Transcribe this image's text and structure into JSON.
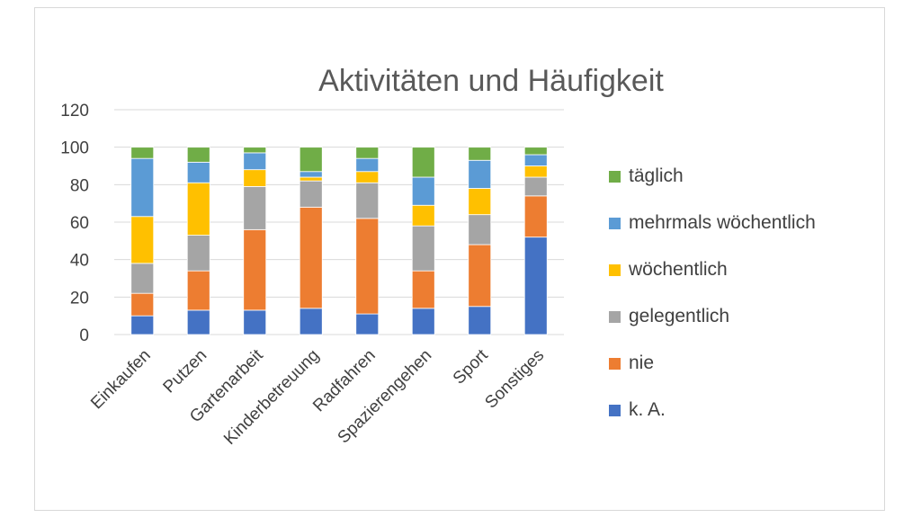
{
  "chart_data": {
    "type": "bar",
    "stacked": true,
    "title": "Aktivitäten und Häufigkeit",
    "xlabel": "",
    "ylabel": "",
    "ylim": [
      0,
      120
    ],
    "yticks": [
      0,
      20,
      40,
      60,
      80,
      100,
      120
    ],
    "grid": true,
    "legend_position": "right",
    "categories": [
      "Einkaufen",
      "Putzen",
      "Gartenarbeit",
      "Kinderbetreuung",
      "Radfahren",
      "Spazierengehen",
      "Sport",
      "Sonstiges"
    ],
    "series": [
      {
        "name": "k. A.",
        "color": "#4472C4",
        "values": [
          10,
          13,
          13,
          14,
          11,
          14,
          15,
          52
        ]
      },
      {
        "name": "nie",
        "color": "#ED7D31",
        "values": [
          12,
          21,
          43,
          54,
          51,
          20,
          33,
          22
        ]
      },
      {
        "name": "gelegentlich",
        "color": "#A5A5A5",
        "values": [
          16,
          19,
          23,
          14,
          19,
          24,
          16,
          10
        ]
      },
      {
        "name": "wöchentlich",
        "color": "#FFC000",
        "values": [
          25,
          28,
          9,
          2,
          6,
          11,
          14,
          6
        ]
      },
      {
        "name": "mehrmals wöchentlich",
        "color": "#5B9BD5",
        "values": [
          31,
          11,
          9,
          3,
          7,
          15,
          15,
          6
        ]
      },
      {
        "name": "täglich",
        "color": "#70AD47",
        "values": [
          6,
          8,
          3,
          13,
          6,
          16,
          7,
          4
        ]
      }
    ]
  }
}
